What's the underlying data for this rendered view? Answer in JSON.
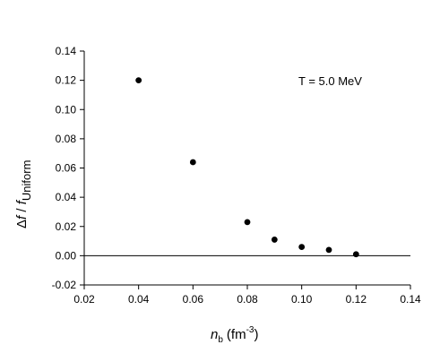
{
  "chart_data": {
    "type": "scatter",
    "annotation": "T = 5.0 MeV",
    "xlabel": {
      "main": "n",
      "sub": "b",
      "unit": "(fm",
      "sup": "-3",
      "close": ")"
    },
    "ylabel": {
      "delta": "Δ",
      "f1": "f",
      "slash": " / ",
      "f2": "f",
      "sub": "Uniform"
    },
    "xlim": [
      0.02,
      0.14
    ],
    "ylim": [
      -0.02,
      0.14
    ],
    "xticks": [
      "0.02",
      "0.04",
      "0.06",
      "0.08",
      "0.10",
      "0.12",
      "0.14"
    ],
    "yticks": [
      "-0.02",
      "0.00",
      "0.02",
      "0.04",
      "0.06",
      "0.08",
      "0.10",
      "0.12",
      "0.14"
    ],
    "reference_line_y": 0.0,
    "grid": false,
    "series": [
      {
        "x": [
          0.04,
          0.06,
          0.08,
          0.09,
          0.1,
          0.11,
          0.12
        ],
        "y": [
          0.12,
          0.064,
          0.023,
          0.011,
          0.006,
          0.004,
          0.001
        ]
      }
    ],
    "colors": {
      "points": "#000000",
      "axes": "#000000"
    }
  }
}
